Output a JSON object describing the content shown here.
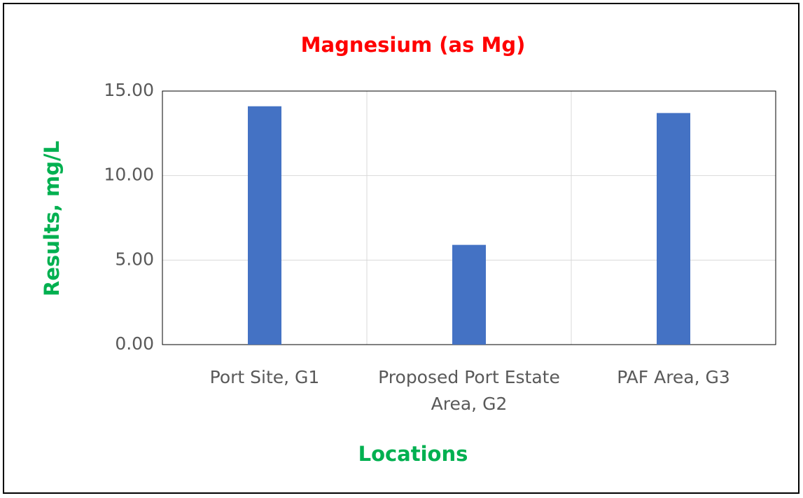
{
  "chart_data": {
    "type": "bar",
    "title": "Magnesium (as Mg)",
    "x_label": "Locations",
    "y_label": "Results, mg/L",
    "categories": [
      "Port Site, G1",
      "Proposed Port Estate Area, G2",
      "PAF Area, G3"
    ],
    "values": [
      14.1,
      5.9,
      13.7
    ],
    "color": "#4472c4",
    "ylim": [
      0,
      15
    ],
    "yticks": [
      {
        "value": 0,
        "label": "0.00"
      },
      {
        "value": 5,
        "label": "5.00"
      },
      {
        "value": 10,
        "label": "10.00"
      },
      {
        "value": 15,
        "label": "15.00"
      }
    ],
    "grid": true
  }
}
